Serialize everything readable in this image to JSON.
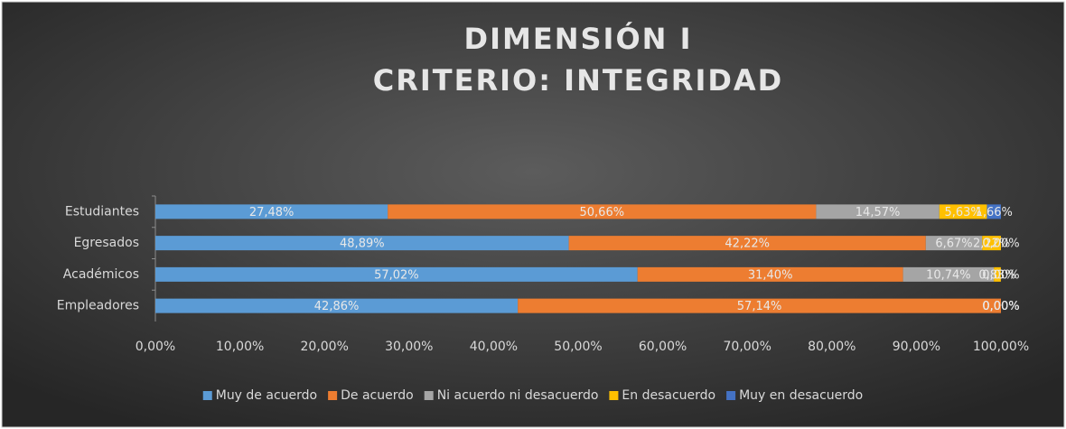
{
  "chart_data": {
    "type": "stacked-bar-horizontal",
    "title": [
      "DIMENSIÓN I",
      "CRITERIO: INTEGRIDAD"
    ],
    "categories": [
      "Estudiantes",
      "Egresados",
      "Académicos",
      "Empleadores"
    ],
    "series": [
      {
        "name": "Muy de acuerdo",
        "color": "#5b9bd5",
        "values": [
          27.48,
          48.89,
          57.02,
          42.86
        ],
        "value_labels": [
          "27,48%",
          "48,89%",
          "57,02%",
          "42,86%"
        ]
      },
      {
        "name": "De acuerdo",
        "color": "#ed7d31",
        "values": [
          50.66,
          42.22,
          31.4,
          57.14
        ],
        "value_labels": [
          "50,66%",
          "42,22%",
          "31,40%",
          "57,14%"
        ]
      },
      {
        "name": "Ni acuerdo ni desacuerdo",
        "color": "#a5a5a5",
        "values": [
          14.57,
          6.67,
          10.74,
          0
        ],
        "value_labels": [
          "14,57%",
          "6,67%",
          "10,74%",
          "0,00%"
        ]
      },
      {
        "name": "En desacuerdo",
        "color": "#ffc000",
        "values": [
          5.63,
          2.22,
          0.83,
          0
        ],
        "value_labels": [
          "5,63%",
          "2,22%",
          "0,83%",
          "0,00%"
        ]
      },
      {
        "name": "Muy en desacuerdo",
        "color": "#4472c4",
        "values": [
          1.66,
          0,
          0,
          0
        ],
        "value_labels": [
          "1,66%",
          "0,00%",
          "0,00%",
          "0,00%"
        ]
      }
    ],
    "xlim": [
      0,
      100
    ],
    "xticks": [
      {
        "value": 0,
        "label": "0,00%"
      },
      {
        "value": 10,
        "label": "10,00%"
      },
      {
        "value": 20,
        "label": "20,00%"
      },
      {
        "value": 30,
        "label": "30,00%"
      },
      {
        "value": 40,
        "label": "40,00%"
      },
      {
        "value": 50,
        "label": "50,00%"
      },
      {
        "value": 60,
        "label": "60,00%"
      },
      {
        "value": 70,
        "label": "70,00%"
      },
      {
        "value": 80,
        "label": "80,00%"
      },
      {
        "value": 90,
        "label": "90,00%"
      },
      {
        "value": 100,
        "label": "100,00%"
      }
    ],
    "grid": false,
    "legend": "bottom"
  }
}
